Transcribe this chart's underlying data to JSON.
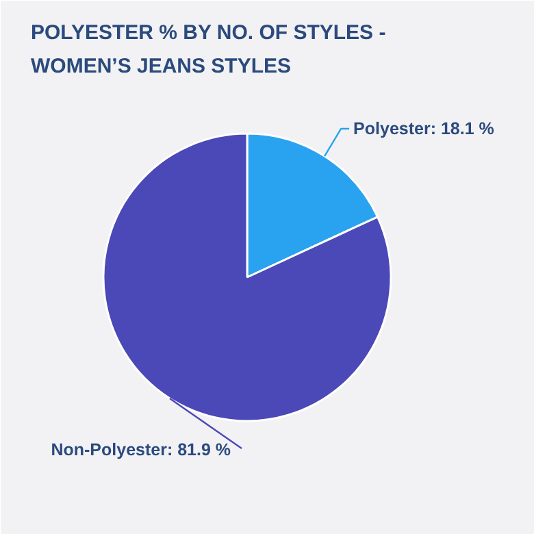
{
  "chart_data": {
    "type": "pie",
    "title": "POLYESTER % BY NO. OF STYLES -\nWOMEN’S JEANS STYLES",
    "categories": [
      "Polyester",
      "Non-Polyester"
    ],
    "values": [
      18.1,
      81.9
    ],
    "colors": [
      "#29a3f0",
      "#4b48b8"
    ],
    "value_labels": [
      "18.1 %",
      "81.9 %"
    ]
  }
}
